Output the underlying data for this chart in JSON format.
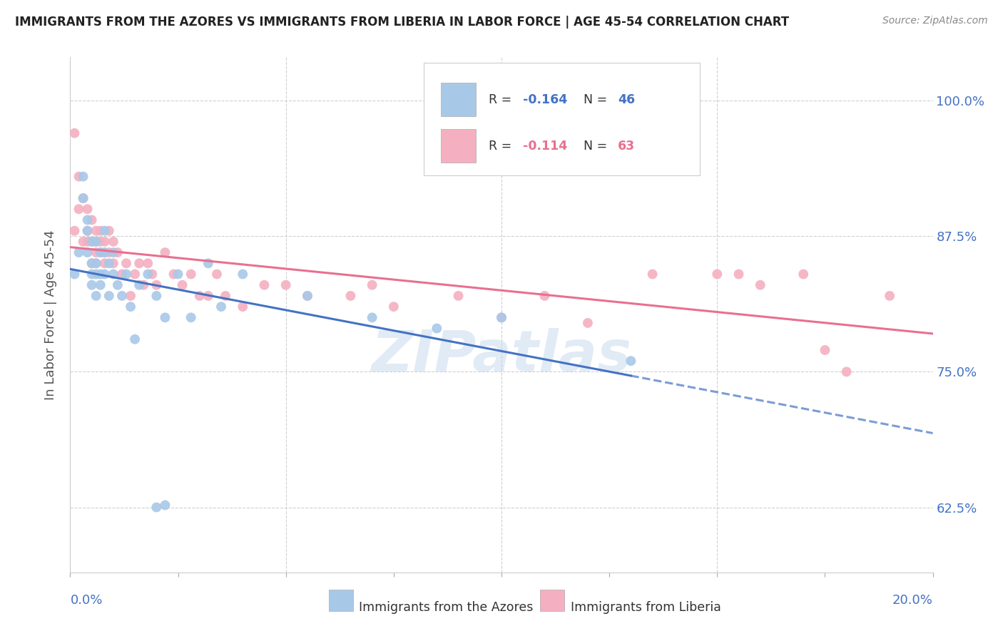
{
  "title": "IMMIGRANTS FROM THE AZORES VS IMMIGRANTS FROM LIBERIA IN LABOR FORCE | AGE 45-54 CORRELATION CHART",
  "source": "Source: ZipAtlas.com",
  "ylabel": "In Labor Force | Age 45-54",
  "yticks": [
    0.625,
    0.75,
    0.875,
    1.0
  ],
  "ytick_labels": [
    "62.5%",
    "75.0%",
    "87.5%",
    "100.0%"
  ],
  "xlim": [
    0.0,
    0.2
  ],
  "ylim": [
    0.565,
    1.04
  ],
  "azores_R": -0.164,
  "azores_N": 46,
  "liberia_R": -0.114,
  "liberia_N": 63,
  "azores_color": "#a8c8e8",
  "liberia_color": "#f4b0c0",
  "azores_line_color": "#4472c4",
  "liberia_line_color": "#e87090",
  "watermark": "ZIPatlas",
  "azores_x": [
    0.001,
    0.002,
    0.003,
    0.003,
    0.004,
    0.004,
    0.004,
    0.005,
    0.005,
    0.005,
    0.005,
    0.006,
    0.006,
    0.006,
    0.006,
    0.007,
    0.007,
    0.007,
    0.008,
    0.008,
    0.008,
    0.009,
    0.009,
    0.01,
    0.01,
    0.011,
    0.012,
    0.013,
    0.014,
    0.015,
    0.016,
    0.018,
    0.02,
    0.022,
    0.025,
    0.028,
    0.032,
    0.035,
    0.04,
    0.055,
    0.07,
    0.085,
    0.1,
    0.13,
    0.02,
    0.022
  ],
  "azores_y": [
    0.84,
    0.86,
    0.91,
    0.93,
    0.86,
    0.88,
    0.89,
    0.83,
    0.84,
    0.85,
    0.87,
    0.82,
    0.84,
    0.85,
    0.87,
    0.83,
    0.84,
    0.86,
    0.84,
    0.86,
    0.88,
    0.82,
    0.85,
    0.84,
    0.86,
    0.83,
    0.82,
    0.84,
    0.81,
    0.78,
    0.83,
    0.84,
    0.82,
    0.8,
    0.84,
    0.8,
    0.85,
    0.81,
    0.84,
    0.82,
    0.8,
    0.79,
    0.8,
    0.76,
    0.625,
    0.627
  ],
  "liberia_x": [
    0.001,
    0.001,
    0.002,
    0.002,
    0.003,
    0.003,
    0.004,
    0.004,
    0.004,
    0.005,
    0.005,
    0.005,
    0.006,
    0.006,
    0.006,
    0.006,
    0.007,
    0.007,
    0.007,
    0.008,
    0.008,
    0.008,
    0.009,
    0.009,
    0.01,
    0.01,
    0.011,
    0.012,
    0.013,
    0.014,
    0.015,
    0.016,
    0.017,
    0.018,
    0.019,
    0.02,
    0.022,
    0.024,
    0.026,
    0.028,
    0.03,
    0.032,
    0.034,
    0.036,
    0.04,
    0.045,
    0.05,
    0.055,
    0.065,
    0.07,
    0.075,
    0.09,
    0.1,
    0.11,
    0.12,
    0.135,
    0.15,
    0.155,
    0.16,
    0.17,
    0.175,
    0.18,
    0.19
  ],
  "liberia_y": [
    0.97,
    0.88,
    0.93,
    0.9,
    0.91,
    0.87,
    0.9,
    0.88,
    0.87,
    0.89,
    0.87,
    0.85,
    0.88,
    0.87,
    0.86,
    0.85,
    0.88,
    0.87,
    0.86,
    0.87,
    0.86,
    0.85,
    0.88,
    0.86,
    0.87,
    0.85,
    0.86,
    0.84,
    0.85,
    0.82,
    0.84,
    0.85,
    0.83,
    0.85,
    0.84,
    0.83,
    0.86,
    0.84,
    0.83,
    0.84,
    0.82,
    0.82,
    0.84,
    0.82,
    0.81,
    0.83,
    0.83,
    0.82,
    0.82,
    0.83,
    0.81,
    0.82,
    0.8,
    0.82,
    0.795,
    0.84,
    0.84,
    0.84,
    0.83,
    0.84,
    0.77,
    0.75,
    0.82
  ],
  "legend_azores_text": "R = -0.164   N = 46",
  "legend_liberia_text": "R = -0.114   N = 63",
  "bottom_legend_azores": "Immigrants from the Azores",
  "bottom_legend_liberia": "Immigrants from Liberia"
}
